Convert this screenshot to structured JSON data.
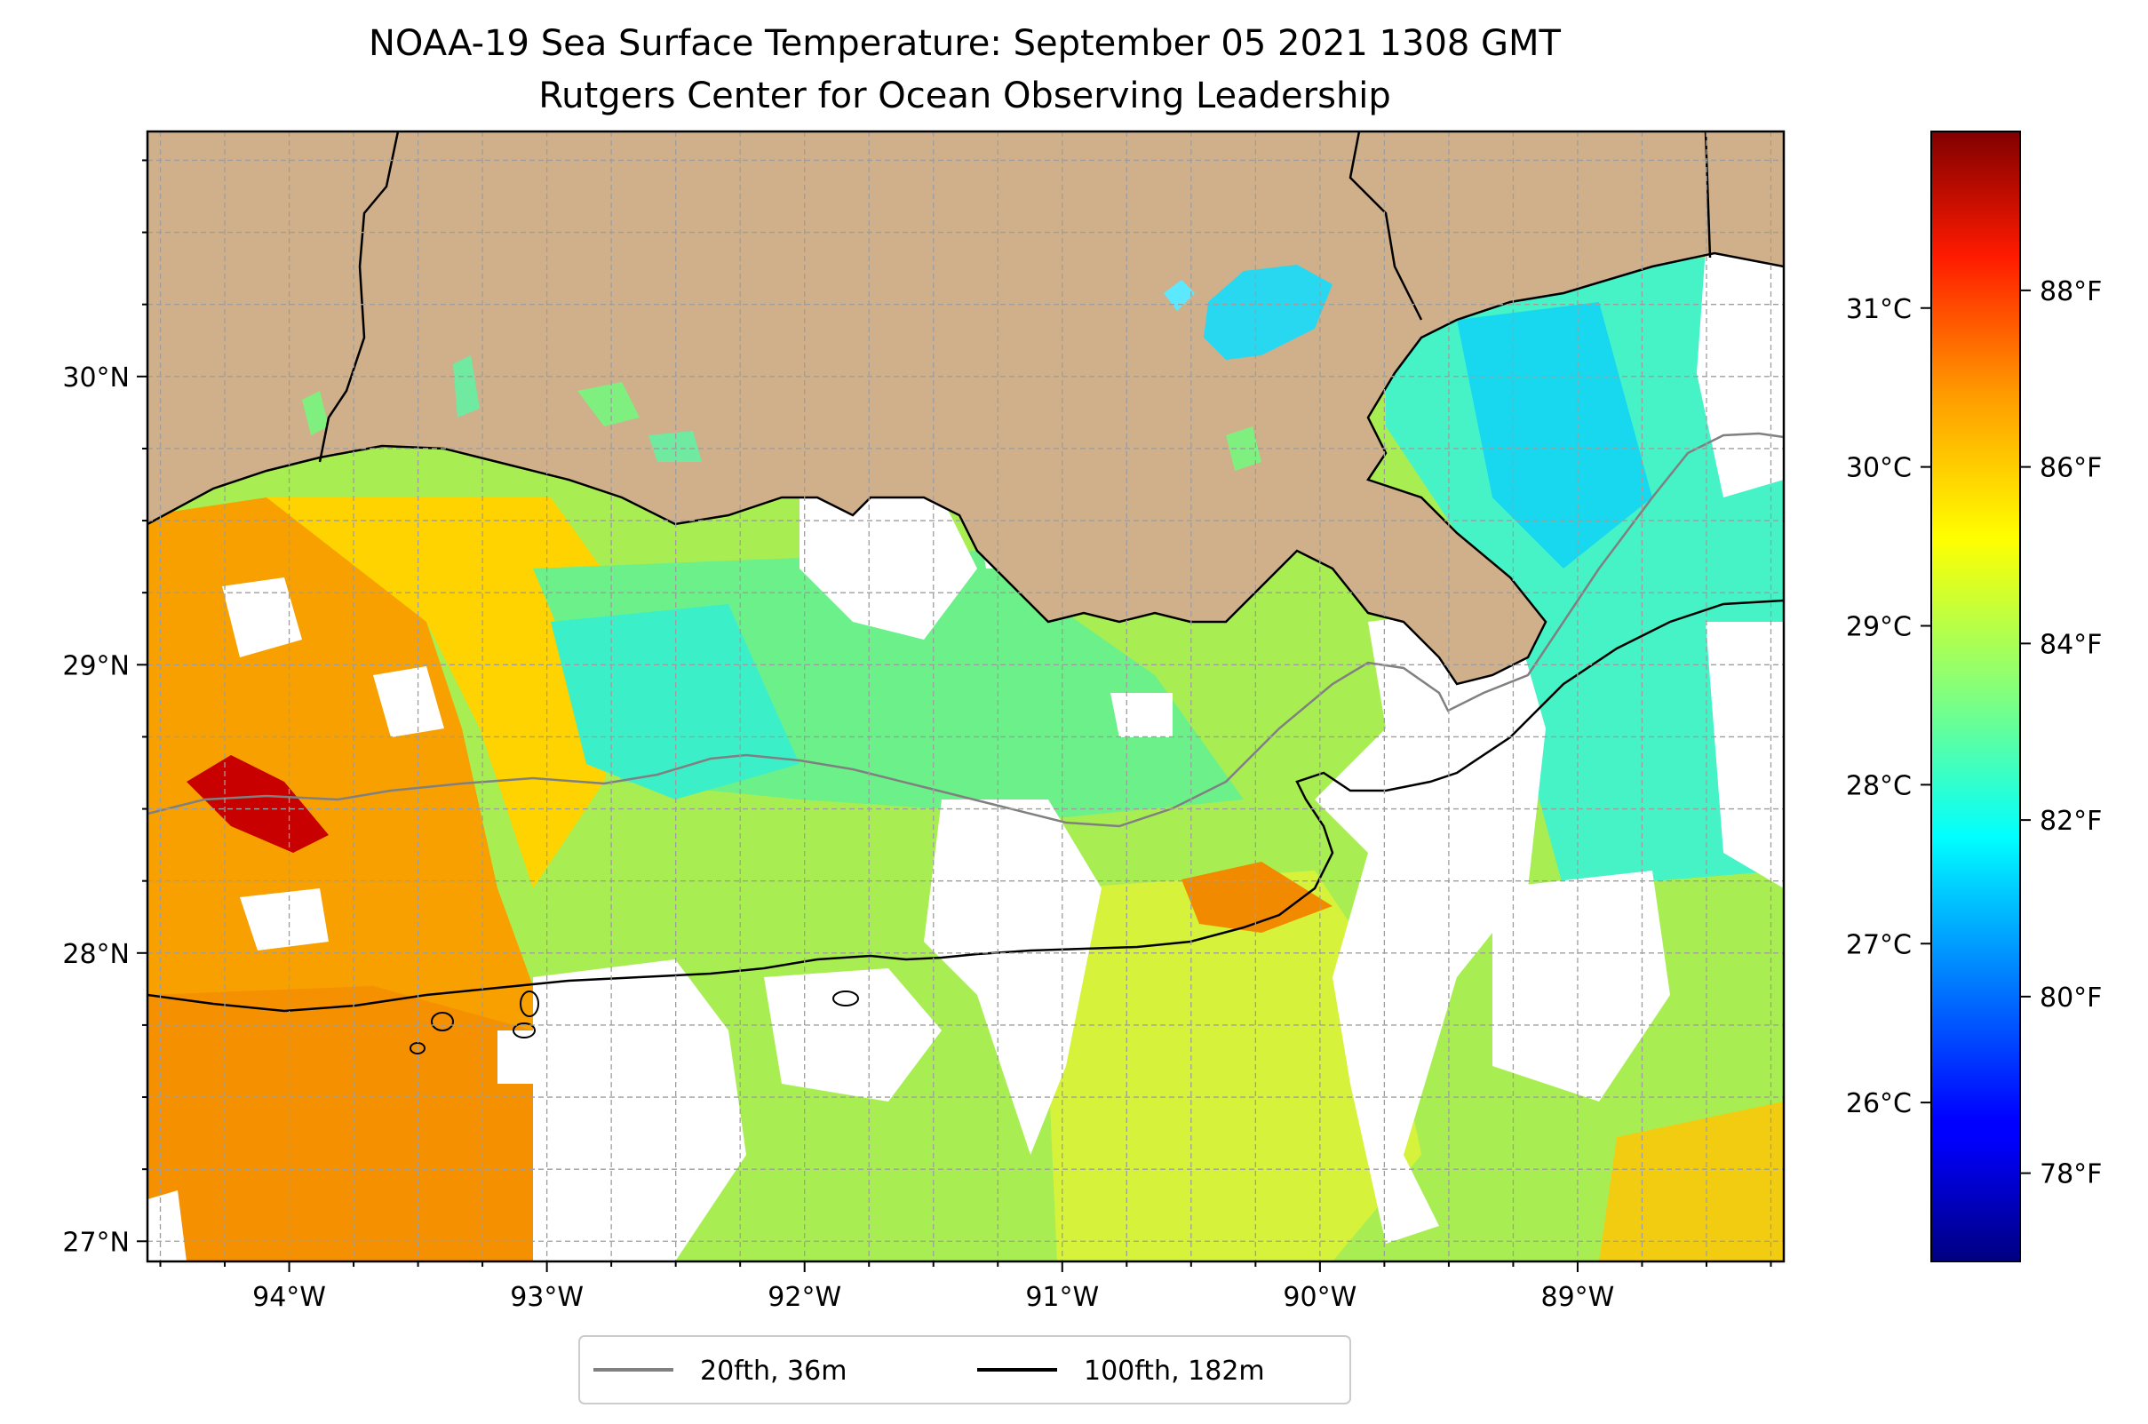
{
  "figure": {
    "title_line1": "NOAA-19 Sea Surface Temperature: September 05 2021 1308 GMT",
    "title_line2": "Rutgers Center for Ocean Observing Leadership"
  },
  "map": {
    "lon_range": [
      -94.55,
      -88.2
    ],
    "lat_range": [
      26.93,
      30.85
    ],
    "lon_ticks": [
      {
        "value": -94,
        "label": "94°W"
      },
      {
        "value": -93,
        "label": "93°W"
      },
      {
        "value": -92,
        "label": "92°W"
      },
      {
        "value": -91,
        "label": "91°W"
      },
      {
        "value": -90,
        "label": "90°W"
      },
      {
        "value": -89,
        "label": "89°W"
      }
    ],
    "lat_ticks": [
      {
        "value": 27,
        "label": "27°N"
      },
      {
        "value": 28,
        "label": "28°N"
      },
      {
        "value": 29,
        "label": "29°N"
      },
      {
        "value": 30,
        "label": "30°N"
      }
    ],
    "gridlines": true,
    "land_color": "#cfb08a",
    "colormap": "jet"
  },
  "colorbar": {
    "fahrenheit_range": [
      77,
      89.8
    ],
    "fahrenheit_ticks": [
      {
        "value": 78,
        "label": "78°F"
      },
      {
        "value": 80,
        "label": "80°F"
      },
      {
        "value": 82,
        "label": "82°F"
      },
      {
        "value": 84,
        "label": "84°F"
      },
      {
        "value": 86,
        "label": "86°F"
      },
      {
        "value": 88,
        "label": "88°F"
      }
    ],
    "celsius_ticks": [
      {
        "value": 26,
        "label": "26°C"
      },
      {
        "value": 27,
        "label": "27°C"
      },
      {
        "value": 28,
        "label": "28°C"
      },
      {
        "value": 29,
        "label": "29°C"
      },
      {
        "value": 30,
        "label": "30°C"
      },
      {
        "value": 31,
        "label": "31°C"
      }
    ]
  },
  "legend": {
    "items": [
      {
        "label": "20fth, 36m",
        "color": "#808080"
      },
      {
        "label": "100fth, 182m",
        "color": "#000000"
      }
    ]
  }
}
